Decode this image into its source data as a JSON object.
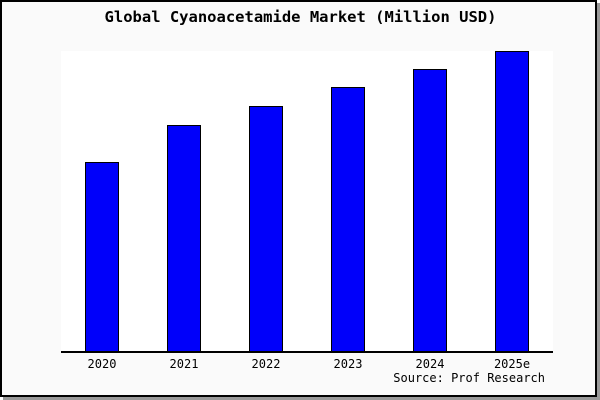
{
  "header": {
    "title": "Global Cyanoacetamide Market (Million USD)"
  },
  "footer": {
    "source": "Source: Prof Research"
  },
  "colors": {
    "card_background": "#fafafa",
    "plot_background": "#ffffff",
    "border": "#000000",
    "shadow": "#999999"
  },
  "chart_data": {
    "type": "bar",
    "title": "Global Cyanoacetamide Market (Million USD)",
    "categories": [
      "2020",
      "2021",
      "2022",
      "2023",
      "2024",
      "2025e"
    ],
    "values": [
      63,
      75.3,
      81.7,
      88,
      94,
      100
    ],
    "values_note": "No y-axis scale shown in image; values are relative bar heights normalized so 2025e = 100",
    "xlabel": "",
    "ylabel": "",
    "y_axis_visible": false,
    "grid": false,
    "legend": false,
    "bar_color": "#0000fa",
    "bar_border_color": "#000000",
    "axis_color": "#000000",
    "source_note": "Source: Prof Research"
  }
}
